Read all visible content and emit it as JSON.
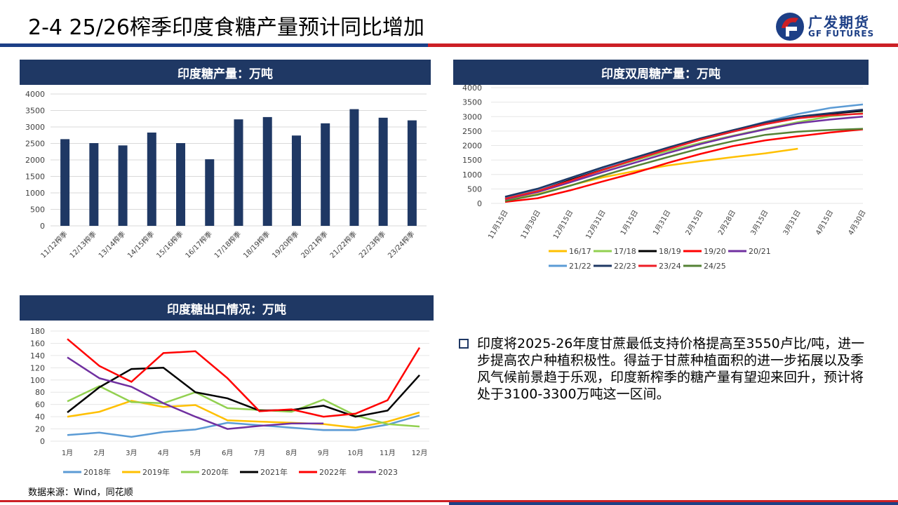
{
  "page": {
    "title": "2-4 25/26榨季印度食糖产量预计同比增加",
    "logo_cn": "广发期货",
    "logo_en": "GF FUTURES",
    "source": "数据来源：Wind，同花顺",
    "note": "印度将2025-26年度甘蔗最低支持价格提高至3550卢比/吨，进一步提高农户种植积极性。得益于甘蔗种植面积的进一步拓展以及季风气候前景趋于乐观，印度新榨季的糖产量有望迎来回升，预计将处于3100-3300万吨这一区间。",
    "colors": {
      "navy": "#1f3864",
      "red": "#cc1f25",
      "brand_blue": "#1d3f86"
    }
  },
  "chart_data": [
    {
      "type": "bar",
      "title": "印度糖产量：万吨",
      "categories": [
        "11/12榨季",
        "12/13榨季",
        "13/14榨季",
        "14/15榨季",
        "15/16榨季",
        "16/17榨季",
        "17/18榨季",
        "18/19榨季",
        "19/20榨季",
        "20/21榨季",
        "21/22榨季",
        "22/23榨季",
        "23/24榨季"
      ],
      "values": [
        2630,
        2510,
        2440,
        2830,
        2510,
        2020,
        3230,
        3300,
        2740,
        3110,
        3540,
        3280,
        3200
      ],
      "ylim": [
        0,
        4000
      ],
      "yticks": [
        "0",
        "500",
        "1000",
        "1500",
        "2000",
        "2500",
        "3000",
        "3500",
        "4000"
      ],
      "color": "#1f3864"
    },
    {
      "type": "line",
      "title": "印度双周糖产量：万吨",
      "x": [
        "11月15日",
        "11月30日",
        "12月15日",
        "12月31日",
        "1月15日",
        "1月31日",
        "2月15日",
        "2月28日",
        "3月15日",
        "3月31日",
        "4月15日",
        "4月30日"
      ],
      "ylim": [
        0,
        4000
      ],
      "yticks": [
        "0",
        "500",
        "1000",
        "1500",
        "2000",
        "2500",
        "3000",
        "3500",
        "4000"
      ],
      "series": [
        {
          "name": "16/17",
          "color": "#ffc000",
          "values": [
            100,
            320,
            620,
            900,
            1120,
            1310,
            1460,
            1600,
            1730,
            1890,
            null,
            null
          ]
        },
        {
          "name": "17/18",
          "color": "#92d050",
          "values": [
            150,
            420,
            780,
            1150,
            1490,
            1810,
            2090,
            2340,
            2580,
            2810,
            3010,
            3120
          ]
        },
        {
          "name": "18/19",
          "color": "#000000",
          "values": [
            200,
            460,
            820,
            1200,
            1550,
            1890,
            2200,
            2480,
            2740,
            2950,
            3100,
            3200
          ]
        },
        {
          "name": "19/20",
          "color": "#ff0000",
          "values": [
            50,
            180,
            450,
            760,
            1060,
            1400,
            1710,
            1980,
            2180,
            2320,
            2450,
            2560
          ]
        },
        {
          "name": "20/21",
          "color": "#7030a0",
          "values": [
            140,
            390,
            730,
            1080,
            1410,
            1740,
            2050,
            2320,
            2560,
            2770,
            2900,
            3000
          ]
        },
        {
          "name": "21/22",
          "color": "#5b9bd5",
          "values": [
            200,
            480,
            870,
            1230,
            1560,
            1900,
            2230,
            2520,
            2820,
            3090,
            3300,
            3420
          ]
        },
        {
          "name": "22/23",
          "color": "#1f3864",
          "values": [
            230,
            510,
            880,
            1250,
            1590,
            1930,
            2250,
            2530,
            2800,
            3000,
            3120,
            3240
          ]
        },
        {
          "name": "23/24",
          "color": "#ee1c25",
          "values": [
            160,
            430,
            780,
            1160,
            1520,
            1870,
            2200,
            2480,
            2740,
            2940,
            3050,
            3100
          ]
        },
        {
          "name": "24/25",
          "color": "#548235",
          "values": [
            80,
            300,
            610,
            960,
            1290,
            1600,
            1900,
            2150,
            2370,
            2480,
            2540,
            2580
          ]
        }
      ]
    },
    {
      "type": "line",
      "title": "印度糖出口情况：万吨",
      "x": [
        "1月",
        "2月",
        "3月",
        "4月",
        "5月",
        "6月",
        "7月",
        "8月",
        "9月",
        "10月",
        "11月",
        "12月"
      ],
      "ylim": [
        0,
        180
      ],
      "yticks": [
        "0",
        "20",
        "40",
        "60",
        "80",
        "100",
        "120",
        "140",
        "160",
        "180"
      ],
      "series": [
        {
          "name": "2018年",
          "color": "#5b9bd5",
          "values": [
            10,
            14,
            7,
            15,
            19,
            30,
            26,
            22,
            18,
            18,
            27,
            42
          ]
        },
        {
          "name": "2019年",
          "color": "#ffc000",
          "values": [
            40,
            48,
            66,
            56,
            59,
            34,
            32,
            30,
            28,
            22,
            32,
            47
          ]
        },
        {
          "name": "2020年",
          "color": "#92d050",
          "values": [
            65,
            90,
            64,
            62,
            80,
            54,
            51,
            48,
            68,
            42,
            28,
            24
          ]
        },
        {
          "name": "2021年",
          "color": "#000000",
          "values": [
            47,
            88,
            118,
            120,
            80,
            70,
            50,
            51,
            58,
            40,
            50,
            108
          ]
        },
        {
          "name": "2022年",
          "color": "#ff0000",
          "values": [
            167,
            123,
            97,
            144,
            147,
            103,
            49,
            52,
            40,
            45,
            67,
            153
          ]
        },
        {
          "name": "2023",
          "color": "#7030a0",
          "values": [
            137,
            103,
            89,
            62,
            40,
            20,
            25,
            29,
            29,
            null,
            null,
            null
          ]
        }
      ]
    }
  ]
}
